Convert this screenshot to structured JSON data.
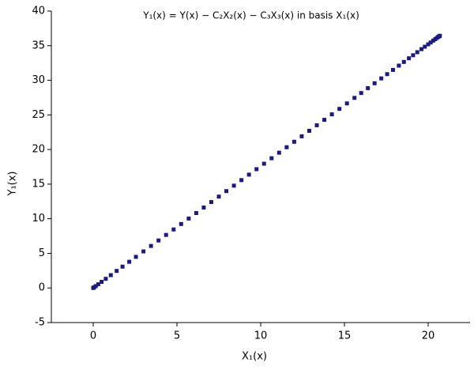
{
  "chart_data": {
    "type": "scatter",
    "title": "Y₁(x) = Y(x) − C₂X₂(x) − C₃X₃(x) in basis X₁(x)",
    "x_label": "X₁(x)",
    "y_label": "Y₁(x)",
    "xlim": [
      -2.5,
      22.5
    ],
    "ylim": [
      -5,
      40
    ],
    "xticks": [
      0,
      5,
      10,
      15,
      20
    ],
    "yticks": [
      -5,
      0,
      5,
      10,
      15,
      20,
      25,
      30,
      35,
      40
    ],
    "series": [
      {
        "color": "#1a1a80",
        "x": [
          0,
          0.05,
          0.15,
          0.3,
          0.5,
          0.75,
          1.05,
          1.4,
          1.75,
          2.15,
          2.55,
          3.0,
          3.45,
          3.9,
          4.35,
          4.8,
          5.25,
          5.7,
          6.15,
          6.6,
          7.05,
          7.5,
          7.95,
          8.4,
          8.85,
          9.3,
          9.75,
          10.2,
          10.65,
          11.1,
          11.55,
          12.0,
          12.45,
          12.9,
          13.35,
          13.8,
          14.25,
          14.7,
          15.15,
          15.6,
          16.0,
          16.4,
          16.8,
          17.2,
          17.55,
          17.9,
          18.25,
          18.55,
          18.85,
          19.1,
          19.35,
          19.6,
          19.8,
          20.0,
          20.15,
          20.3,
          20.42,
          20.52,
          20.6,
          20.66,
          20.7
        ],
        "values": [
          0,
          0.09,
          0.26,
          0.53,
          0.88,
          1.32,
          1.85,
          2.46,
          3.08,
          3.78,
          4.49,
          5.28,
          6.07,
          6.86,
          7.66,
          8.45,
          9.24,
          10.03,
          10.82,
          11.62,
          12.41,
          13.2,
          13.99,
          14.78,
          15.58,
          16.37,
          17.16,
          17.95,
          18.74,
          19.54,
          20.33,
          21.12,
          21.91,
          22.7,
          23.5,
          24.29,
          25.08,
          25.87,
          26.66,
          27.46,
          28.16,
          28.86,
          29.57,
          30.27,
          30.89,
          31.5,
          32.12,
          32.65,
          33.18,
          33.62,
          34.06,
          34.5,
          34.85,
          35.2,
          35.46,
          35.73,
          35.94,
          36.12,
          36.26,
          36.36,
          36.43
        ]
      }
    ]
  }
}
